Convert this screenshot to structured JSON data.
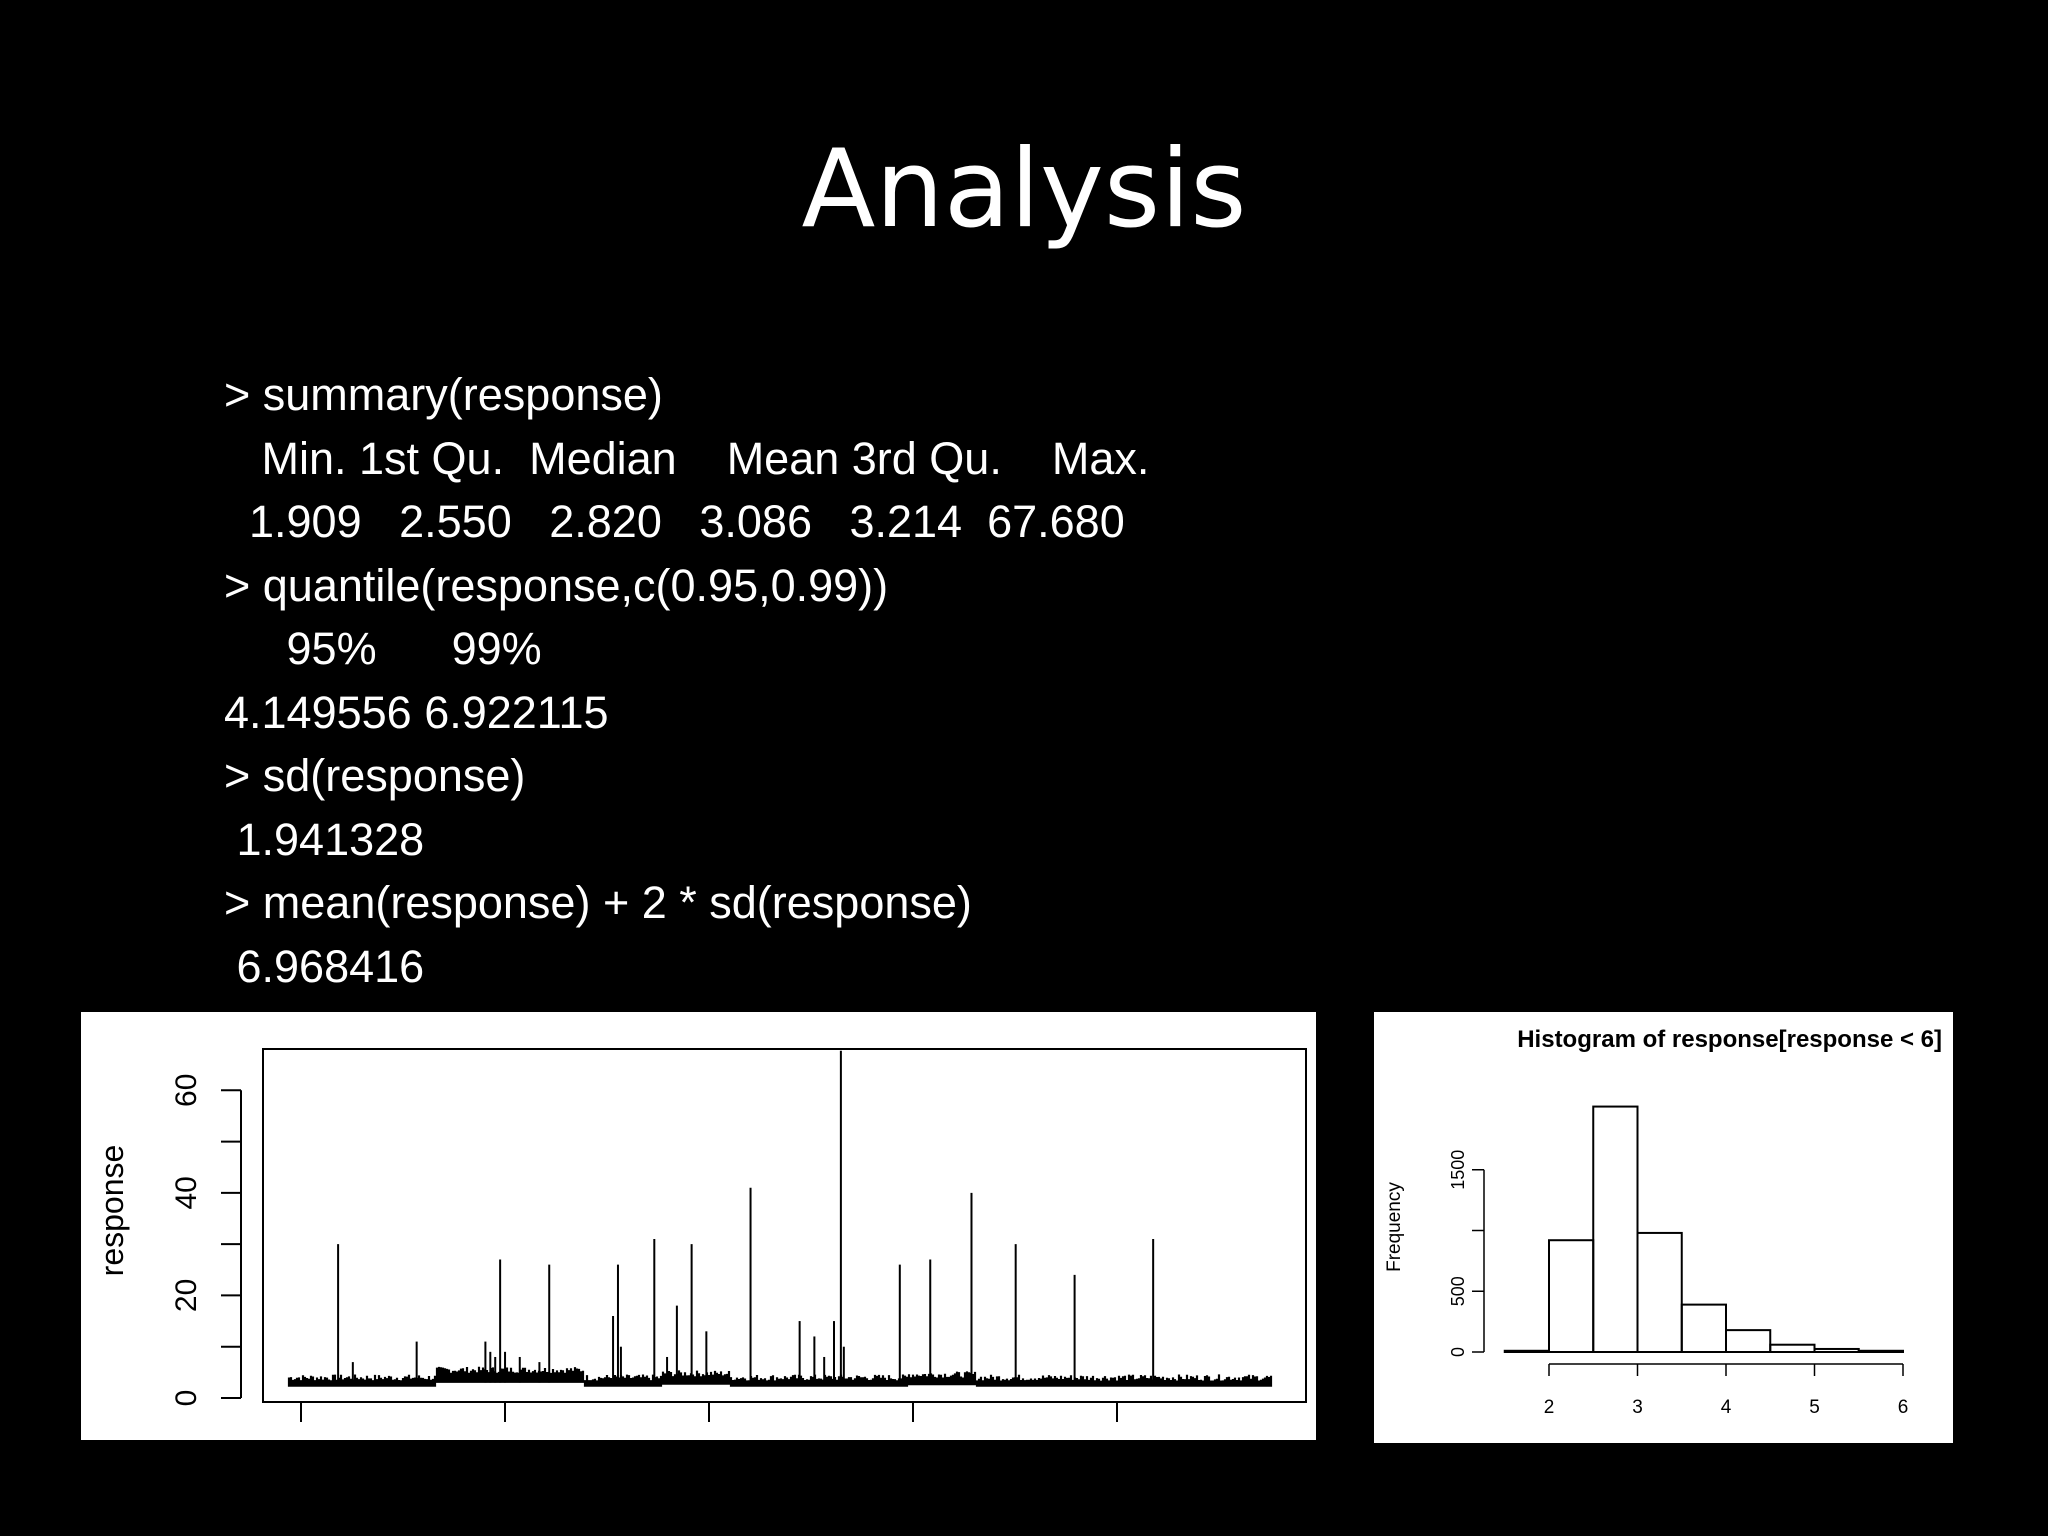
{
  "slide": {
    "title": "Analysis",
    "console_lines": [
      "> summary(response)",
      "   Min. 1st Qu.  Median    Mean 3rd Qu.    Max. ",
      "  1.909   2.550   2.820   3.086   3.214  67.680 ",
      "> quantile(response,c(0.95,0.99))",
      "     95%      99% ",
      "4.149556 6.922115 ",
      "> sd(response)",
      " 1.941328",
      "> mean(response) + 2 * sd(response)",
      " 6.968416"
    ]
  },
  "colors": {
    "background": "#000000",
    "text": "#ffffff",
    "plot_bg": "#ffffff",
    "plot_ink": "#000000"
  },
  "chart_data": [
    {
      "type": "line",
      "title": "",
      "xlabel": "",
      "ylabel": "response",
      "ylim": [
        0,
        70
      ],
      "y_ticks": [
        0,
        20,
        40,
        60
      ],
      "y_minor_ticks": [
        10,
        30,
        50
      ],
      "x_ticks": 5,
      "x_tick_labels": [],
      "baseline_approx": 3,
      "spikes": [
        {
          "x": 0.05,
          "y": 30
        },
        {
          "x": 0.065,
          "y": 7
        },
        {
          "x": 0.13,
          "y": 11
        },
        {
          "x": 0.2,
          "y": 11
        },
        {
          "x": 0.205,
          "y": 9
        },
        {
          "x": 0.21,
          "y": 8
        },
        {
          "x": 0.215,
          "y": 27
        },
        {
          "x": 0.22,
          "y": 9
        },
        {
          "x": 0.235,
          "y": 8
        },
        {
          "x": 0.255,
          "y": 7
        },
        {
          "x": 0.265,
          "y": 26
        },
        {
          "x": 0.33,
          "y": 16
        },
        {
          "x": 0.335,
          "y": 26
        },
        {
          "x": 0.338,
          "y": 10
        },
        {
          "x": 0.372,
          "y": 31
        },
        {
          "x": 0.385,
          "y": 8
        },
        {
          "x": 0.395,
          "y": 18
        },
        {
          "x": 0.41,
          "y": 30
        },
        {
          "x": 0.425,
          "y": 13
        },
        {
          "x": 0.47,
          "y": 41
        },
        {
          "x": 0.52,
          "y": 15
        },
        {
          "x": 0.535,
          "y": 12
        },
        {
          "x": 0.545,
          "y": 8
        },
        {
          "x": 0.555,
          "y": 15
        },
        {
          "x": 0.562,
          "y": 67.7
        },
        {
          "x": 0.565,
          "y": 10
        },
        {
          "x": 0.622,
          "y": 26
        },
        {
          "x": 0.653,
          "y": 27
        },
        {
          "x": 0.695,
          "y": 40
        },
        {
          "x": 0.74,
          "y": 30
        },
        {
          "x": 0.8,
          "y": 24
        },
        {
          "x": 0.88,
          "y": 31
        }
      ]
    },
    {
      "type": "bar",
      "title": "Histogram of response[response < 6]",
      "xlabel": "",
      "ylabel": "Frequency",
      "bins": [
        [
          1.5,
          2.0
        ],
        [
          2.0,
          2.5
        ],
        [
          2.5,
          3.0
        ],
        [
          3.0,
          3.5
        ],
        [
          3.5,
          4.0
        ],
        [
          4.0,
          4.5
        ],
        [
          4.5,
          5.0
        ],
        [
          5.0,
          5.5
        ],
        [
          5.5,
          6.0
        ]
      ],
      "values": [
        10,
        920,
        2020,
        980,
        390,
        180,
        60,
        25,
        10
      ],
      "xlim": [
        2,
        6
      ],
      "x_ticks": [
        2,
        3,
        4,
        5,
        6
      ],
      "ylim": [
        0,
        1900
      ],
      "y_ticks": [
        0,
        500,
        1500
      ],
      "y_tick_labels": [
        "0",
        "500",
        "1500"
      ]
    }
  ]
}
